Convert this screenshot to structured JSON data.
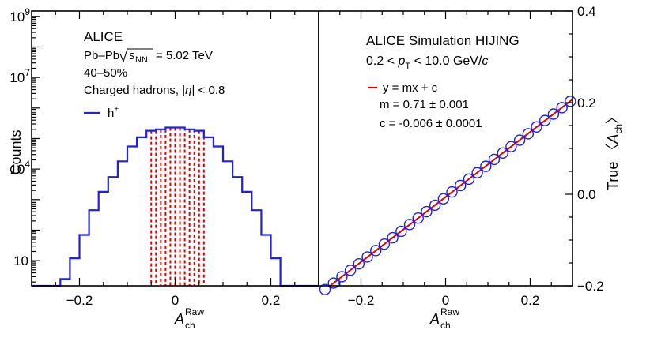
{
  "chart_data": [
    {
      "type": "histogram",
      "panel": "left",
      "ylabel": "Counts",
      "xlabel": {
        "main": "A",
        "sub": "ch",
        "sup": "Raw"
      },
      "xlim": [
        -0.3,
        0.3
      ],
      "ylim_log": [
        1.5,
        1500000000
      ],
      "y_scale": "log",
      "x_ticks": [
        -0.2,
        0,
        0.2
      ],
      "x_tick_labels": [
        "−0.2",
        "0",
        "0.2"
      ],
      "y_tick_labels": [
        {
          "value": 1000000000,
          "mant": "10",
          "exp": "9"
        },
        {
          "value": 10000000,
          "mant": "10",
          "exp": "7"
        },
        {
          "value": 10000,
          "mant": "10",
          "exp": "4"
        },
        {
          "value": 10,
          "mant": "10",
          "exp": ""
        }
      ],
      "annotations": {
        "experiment": "ALICE",
        "system_pre": "Pb–Pb",
        "sqrt_s_sub": "NN",
        "energy": "= 5.02 TeV",
        "centrality": "40–50%",
        "selection_pre": "Charged hadrons, |",
        "selection_eta": "η",
        "selection_post": "| < 0.8"
      },
      "legend": {
        "label": "h",
        "sup": "±",
        "color": "#1f1fe6"
      },
      "bin_edges": [
        -0.3,
        -0.28,
        -0.26,
        -0.24,
        -0.22,
        -0.2,
        -0.18,
        -0.16,
        -0.14,
        -0.12,
        -0.1,
        -0.08,
        -0.06,
        -0.04,
        -0.02,
        0,
        0.02,
        0.04,
        0.06,
        0.08,
        0.1,
        0.12,
        0.14,
        0.16,
        0.18,
        0.2,
        0.22,
        0.24,
        0.26,
        0.28,
        0.3
      ],
      "counts": [
        1.5,
        1.5,
        1.5,
        2.5,
        12,
        70,
        450,
        1800,
        5500,
        18000,
        55000,
        110000,
        180000,
        200000,
        230000,
        230000,
        200000,
        180000,
        110000,
        55000,
        18000,
        5500,
        1800,
        450,
        70,
        12,
        1.5,
        1.5,
        1.5,
        1.5
      ],
      "bin_boundaries_dashed": [
        -0.05,
        -0.04,
        -0.03,
        -0.02,
        -0.01,
        0,
        0.01,
        0.02,
        0.03,
        0.04,
        0.05,
        0.06
      ],
      "colors": {
        "histogram": "#1f1fe6",
        "dashed": "#e00000"
      }
    },
    {
      "type": "scatter",
      "panel": "right",
      "xlabel": {
        "main": "A",
        "sub": "ch",
        "sup": "Raw"
      },
      "ylabel": {
        "pre": "True 〈",
        "main": "A",
        "sub": "ch",
        "post": "〉"
      },
      "xlim": [
        -0.3,
        0.3
      ],
      "ylim": [
        -0.2,
        0.4
      ],
      "x_ticks": [
        -0.2,
        0,
        0.2
      ],
      "x_tick_labels": [
        "−0.2",
        "0",
        "0.2"
      ],
      "y_ticks": [
        -0.2,
        0,
        0.2,
        0.4
      ],
      "y_tick_labels": [
        "−0.2",
        "0.0",
        "0.2",
        "0.4"
      ],
      "annotations": {
        "title": "ALICE Simulation HIJING",
        "range_pre": "0.2 <",
        "range_p": "p",
        "range_sub": "T",
        "range_post": "< 10.0 GeV/",
        "range_c": "c"
      },
      "legend": {
        "fit": "y = mx + c",
        "m": "m = 0.71 ± 0.001",
        "c": "c = -0.006 ± 0.0001"
      },
      "fit": {
        "m": 0.71,
        "c": -0.006,
        "color": "#e00000"
      },
      "points_x": [
        -0.285,
        -0.265,
        -0.245,
        -0.225,
        -0.205,
        -0.185,
        -0.165,
        -0.145,
        -0.125,
        -0.105,
        -0.085,
        -0.065,
        -0.045,
        -0.025,
        -0.005,
        0.015,
        0.035,
        0.055,
        0.075,
        0.095,
        0.115,
        0.135,
        0.155,
        0.175,
        0.195,
        0.215,
        0.235,
        0.255,
        0.275,
        0.295
      ],
      "points_y": [
        -0.208,
        -0.194,
        -0.18,
        -0.166,
        -0.152,
        -0.137,
        -0.123,
        -0.109,
        -0.095,
        -0.081,
        -0.066,
        -0.052,
        -0.038,
        -0.024,
        -0.01,
        0.005,
        0.019,
        0.033,
        0.047,
        0.061,
        0.076,
        0.09,
        0.104,
        0.118,
        0.132,
        0.147,
        0.161,
        0.175,
        0.189,
        0.203
      ],
      "marker_color": "#1f1fe6"
    }
  ]
}
